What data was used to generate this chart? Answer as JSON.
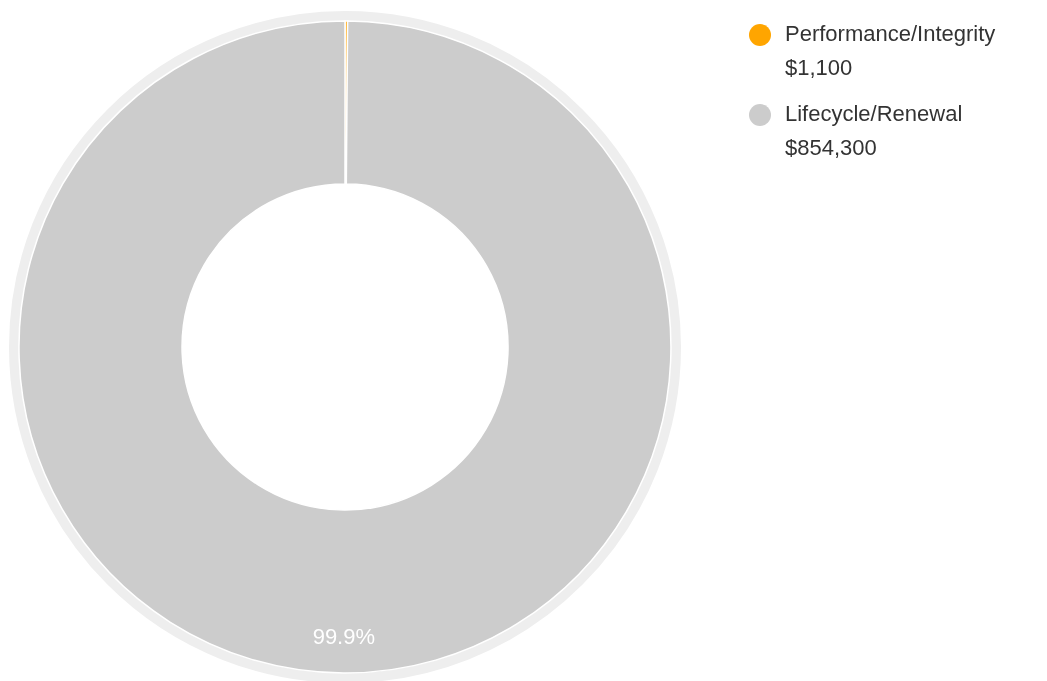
{
  "chart_data": {
    "type": "donut",
    "categories": [
      "Performance/Integrity",
      "Lifecycle/Renewal"
    ],
    "values": [
      1100,
      854300
    ],
    "colors": [
      "#ffa500",
      "#cccccc"
    ],
    "value_labels": [
      "$1,100",
      "$854,300"
    ],
    "annotations": [
      "99.9%"
    ],
    "legend": "top right"
  }
}
